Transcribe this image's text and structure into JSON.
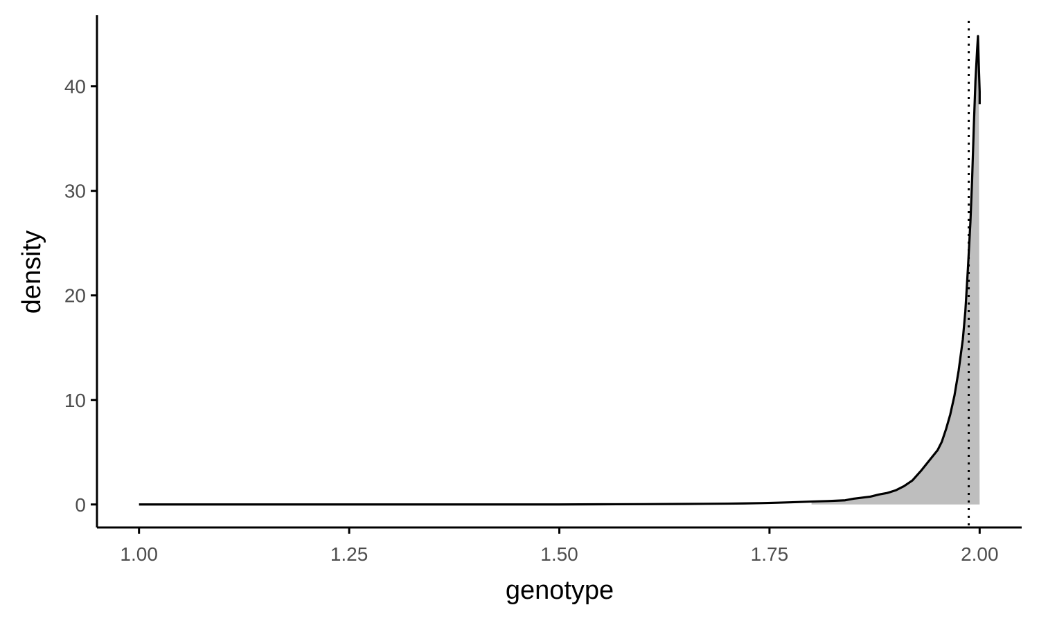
{
  "chart_data": {
    "type": "area",
    "title": "",
    "xlabel": "genotype",
    "ylabel": "density",
    "xlim": [
      0.95,
      2.05
    ],
    "ylim": [
      -2.2,
      46.8
    ],
    "x_ticks": [
      1.0,
      1.25,
      1.5,
      1.75,
      2.0
    ],
    "x_tick_labels": [
      "1.00",
      "1.25",
      "1.50",
      "1.75",
      "2.00"
    ],
    "y_ticks": [
      0,
      10,
      20,
      30,
      40
    ],
    "y_tick_labels": [
      "0",
      "10",
      "20",
      "30",
      "40"
    ],
    "grid": false,
    "legend": "none",
    "vline": {
      "x": 1.987,
      "style": "dotted",
      "color": "#000000"
    },
    "shaded_region": {
      "from_x": 1.987,
      "to_x": 2.0,
      "color": "#bebebe"
    },
    "series": [
      {
        "x": [
          1.0,
          1.1,
          1.2,
          1.3,
          1.4,
          1.5,
          1.55,
          1.6,
          1.65,
          1.7,
          1.72,
          1.74,
          1.76,
          1.78,
          1.8,
          1.82,
          1.84,
          1.85,
          1.86,
          1.87,
          1.88,
          1.89,
          1.9,
          1.91,
          1.92,
          1.93,
          1.94,
          1.95,
          1.955,
          1.96,
          1.965,
          1.97,
          1.975,
          1.98,
          1.983,
          1.986,
          1.989,
          1.991,
          1.993,
          1.995,
          1.997,
          1.998,
          1.999,
          2.0,
          2.0
        ],
        "y": [
          0,
          0,
          0,
          0,
          0,
          0,
          0.02,
          0.03,
          0.05,
          0.08,
          0.1,
          0.13,
          0.17,
          0.22,
          0.28,
          0.33,
          0.4,
          0.55,
          0.65,
          0.75,
          0.95,
          1.1,
          1.35,
          1.75,
          2.3,
          3.2,
          4.2,
          5.2,
          6.0,
          7.2,
          8.6,
          10.4,
          12.8,
          15.8,
          18.5,
          22.5,
          27.0,
          31.0,
          36.0,
          40.5,
          43.5,
          44.8,
          42.0,
          39.5,
          38.3
        ]
      }
    ],
    "colors": {
      "line": "#000000",
      "fill": "#bebebe",
      "axis": "#000000",
      "tick_text": "#4d4d4d"
    }
  }
}
